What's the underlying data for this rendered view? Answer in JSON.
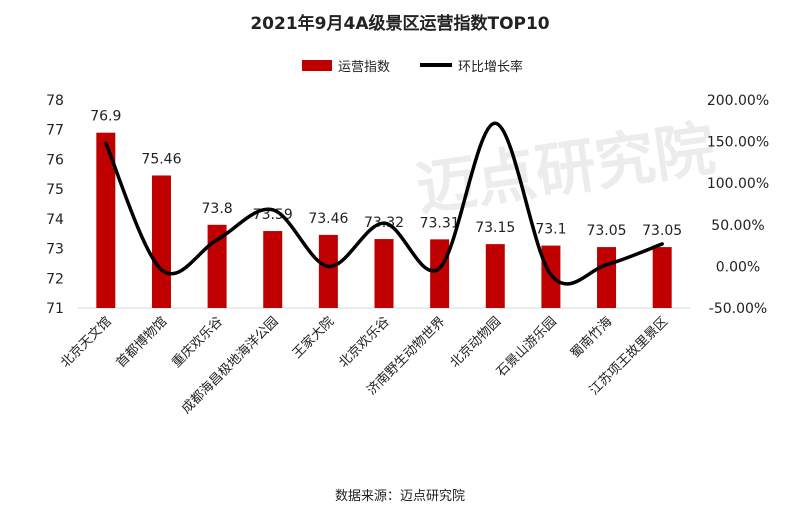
{
  "chart_data": {
    "type": "bar+line",
    "title": "2021年9月4A级景区运营指数TOP10",
    "categories": [
      "北京天文馆",
      "首都博物馆",
      "重庆欢乐谷",
      "成都海昌极地海洋公园",
      "王家大院",
      "北京欢乐谷",
      "济南野生动物世界",
      "北京动物园",
      "石景山游乐园",
      "蜀南竹海",
      "江苏项王故里景区"
    ],
    "series": [
      {
        "name": "运营指数",
        "type": "bar",
        "axis": "left",
        "color": "#C00000",
        "values": [
          76.9,
          75.46,
          73.8,
          73.59,
          73.46,
          73.32,
          73.31,
          73.15,
          73.1,
          73.05,
          73.05
        ],
        "labels": [
          "76.9",
          "75.46",
          "73.8",
          "73.59",
          "73.46",
          "73.32",
          "73.31",
          "73.15",
          "73.1",
          "73.05",
          "73.05"
        ]
      },
      {
        "name": "环比增长率",
        "type": "line",
        "axis": "right",
        "color": "#000000",
        "values": [
          148,
          -4,
          32,
          68,
          0,
          52,
          -2,
          172,
          -10,
          2,
          27
        ]
      }
    ],
    "left_axis": {
      "min": 71,
      "max": 78,
      "ticks": [
        "71",
        "72",
        "73",
        "74",
        "75",
        "76",
        "77",
        "78"
      ]
    },
    "right_axis": {
      "min": -50,
      "max": 200,
      "ticks": [
        "-50.00%",
        "0.00%",
        "50.00%",
        "100.00%",
        "150.00%",
        "200.00%"
      ]
    },
    "legend_position": "top-center",
    "source": "数据来源：迈点研究院",
    "watermark": "迈点研究院"
  }
}
